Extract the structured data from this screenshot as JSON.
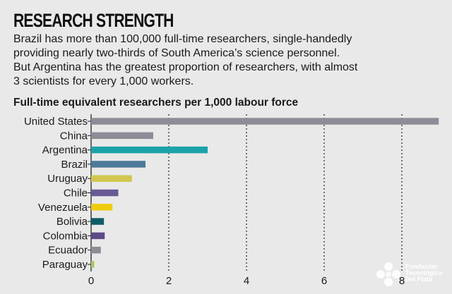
{
  "header": {
    "title": "RESEARCH STRENGTH",
    "intro_lines": [
      "Brazil has more than 100,000 full-time researchers, single-handedly",
      "providing nearly two-thirds of South America’s science personnel.",
      "But Argentina has the greatest proportion of researchers, with almost",
      "3 scientists for every 1,000 workers."
    ]
  },
  "chart_data": {
    "type": "bar",
    "orientation": "horizontal",
    "title": "Full-time equivalent researchers per 1,000 labour force",
    "categories": [
      "United States",
      "China",
      "Argentina",
      "Brazil",
      "Uruguay",
      "Chile",
      "Venezuela",
      "Bolivia",
      "Colombia",
      "Ecuador",
      "Paraguay"
    ],
    "values": [
      8.95,
      1.6,
      3.0,
      1.4,
      1.05,
      0.7,
      0.55,
      0.33,
      0.35,
      0.25,
      0.08
    ],
    "colors": [
      "#8e8c97",
      "#8e8c97",
      "#1ba3a9",
      "#4d7a98",
      "#d2c650",
      "#6a5a94",
      "#f0cc10",
      "#0f5c66",
      "#5e4a87",
      "#8e8c97",
      "#a6c65c"
    ],
    "xlim": [
      0,
      9
    ],
    "xticks": [
      0,
      2,
      4,
      6,
      8
    ],
    "grid": "dotted vertical lines at 2, 4, 6, 8"
  },
  "logo": {
    "lines": [
      "Fundación",
      "Tecnológica",
      "Del Plata"
    ]
  }
}
